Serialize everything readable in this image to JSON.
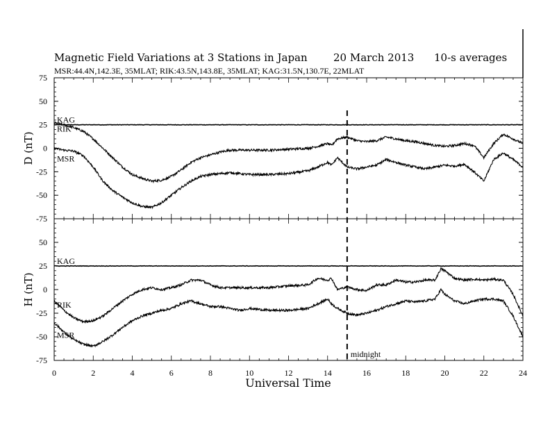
{
  "chart_data": {
    "type": "line",
    "title": "Magnetic Field Variations at 3 Stations in Japan",
    "date": "20 March   2013",
    "averaging": "10-s averages",
    "subtitle": "MSR:44.4N,142.3E, 35MLAT;  RIK:43.5N,143.8E, 35MLAT;  KAG:31.5N,130.7E, 22MLAT",
    "xlabel": "Universal Time",
    "xlim": [
      0,
      24
    ],
    "xticks": [
      "0",
      "2",
      "4",
      "6",
      "8",
      "10",
      "12",
      "14",
      "16",
      "18",
      "20",
      "22",
      "24"
    ],
    "annotation": {
      "x": 15,
      "label": "midnight"
    },
    "panels": [
      {
        "ylabel": "D (nT)",
        "ylim": [
          -75,
          75
        ],
        "yticks": [
          "75",
          "50",
          "25",
          "0",
          "-25",
          "-50",
          "-75"
        ],
        "series": [
          {
            "name": "KAG",
            "x": [
              0,
              24
            ],
            "values": [
              25,
              25
            ]
          },
          {
            "name": "RIK",
            "x": [
              0,
              0.5,
              1,
              1.5,
              2,
              2.5,
              3,
              3.5,
              4,
              4.5,
              5,
              5.5,
              6,
              6.5,
              7,
              7.5,
              8,
              8.5,
              9,
              9.5,
              10,
              11,
              12,
              13,
              13.5,
              14,
              14.2,
              14.5,
              15,
              15.5,
              16,
              16.5,
              17,
              17.5,
              18,
              18.5,
              19,
              19.5,
              20,
              20.5,
              21,
              21.5,
              22,
              22.5,
              23,
              23.5,
              24
            ],
            "values": [
              27,
              25,
              22,
              18,
              10,
              0,
              -10,
              -20,
              -28,
              -32,
              -35,
              -34,
              -30,
              -23,
              -15,
              -10,
              -7,
              -4,
              -2,
              -2,
              -2,
              -2,
              -1,
              0,
              2,
              5,
              3,
              10,
              12,
              8,
              7,
              8,
              12,
              10,
              8,
              7,
              5,
              3,
              2,
              3,
              5,
              3,
              -10,
              5,
              15,
              10,
              5
            ]
          },
          {
            "name": "MSR",
            "x": [
              0,
              0.5,
              1,
              1.5,
              2,
              2.5,
              3,
              3.5,
              4,
              4.5,
              5,
              5.5,
              6,
              6.5,
              7,
              7.5,
              8,
              8.5,
              9,
              9.5,
              10,
              11,
              12,
              13,
              13.5,
              14,
              14.2,
              14.5,
              15,
              15.5,
              16,
              16.5,
              17,
              17.5,
              18,
              18.5,
              19,
              19.5,
              20,
              20.5,
              21,
              21.5,
              22,
              22.5,
              23,
              23.5,
              24
            ],
            "values": [
              0,
              -2,
              -3,
              -8,
              -20,
              -35,
              -45,
              -52,
              -58,
              -62,
              -63,
              -58,
              -50,
              -42,
              -35,
              -30,
              -28,
              -27,
              -26,
              -27,
              -28,
              -28,
              -27,
              -24,
              -20,
              -15,
              -18,
              -10,
              -20,
              -22,
              -20,
              -18,
              -12,
              -15,
              -18,
              -20,
              -22,
              -20,
              -18,
              -19,
              -17,
              -25,
              -35,
              -12,
              -5,
              -12,
              -20
            ]
          }
        ]
      },
      {
        "ylabel": "H (nT)",
        "ylim": [
          -75,
          75
        ],
        "yticks": [
          "75",
          "50",
          "25",
          "0",
          "-25",
          "-50",
          "-75"
        ],
        "series": [
          {
            "name": "KAG",
            "x": [
              0,
              24
            ],
            "values": [
              25,
              25
            ]
          },
          {
            "name": "RIK",
            "x": [
              0,
              0.5,
              1,
              1.5,
              2,
              2.5,
              3,
              3.5,
              4,
              4.5,
              5,
              5.5,
              6,
              6.5,
              7,
              7.5,
              8,
              8.5,
              9,
              9.5,
              10,
              11,
              12,
              13,
              13.5,
              14,
              14.2,
              14.5,
              15,
              15.5,
              16,
              16.5,
              17,
              17.5,
              18,
              18.5,
              19,
              19.5,
              19.8,
              20,
              20.5,
              21,
              21.5,
              22,
              22.5,
              23,
              23.5,
              24
            ],
            "values": [
              -12,
              -22,
              -30,
              -34,
              -33,
              -28,
              -20,
              -12,
              -5,
              0,
              2,
              0,
              2,
              5,
              10,
              10,
              5,
              2,
              2,
              2,
              2,
              2,
              4,
              5,
              12,
              10,
              12,
              0,
              3,
              0,
              -1,
              5,
              5,
              10,
              8,
              8,
              10,
              10,
              22,
              20,
              12,
              10,
              11,
              10,
              11,
              10,
              -5,
              -28
            ]
          },
          {
            "name": "MSR",
            "x": [
              0,
              0.5,
              1,
              1.5,
              2,
              2.5,
              3,
              3.5,
              4,
              4.5,
              5,
              5.5,
              6,
              6.5,
              7,
              7.5,
              8,
              8.5,
              9,
              9.5,
              10,
              11,
              12,
              13,
              13.5,
              14,
              14.2,
              14.5,
              15,
              15.5,
              16,
              16.5,
              17,
              17.5,
              18,
              18.5,
              19,
              19.5,
              19.8,
              20,
              20.5,
              21,
              21.5,
              22,
              22.5,
              23,
              23.5,
              24
            ],
            "values": [
              -35,
              -45,
              -53,
              -58,
              -60,
              -55,
              -48,
              -40,
              -33,
              -28,
              -25,
              -22,
              -20,
              -15,
              -12,
              -15,
              -18,
              -18,
              -20,
              -22,
              -20,
              -22,
              -22,
              -20,
              -15,
              -10,
              -15,
              -20,
              -25,
              -27,
              -25,
              -22,
              -18,
              -15,
              -12,
              -13,
              -12,
              -10,
              0,
              -5,
              -12,
              -15,
              -12,
              -10,
              -10,
              -12,
              -28,
              -50
            ]
          }
        ]
      }
    ]
  }
}
